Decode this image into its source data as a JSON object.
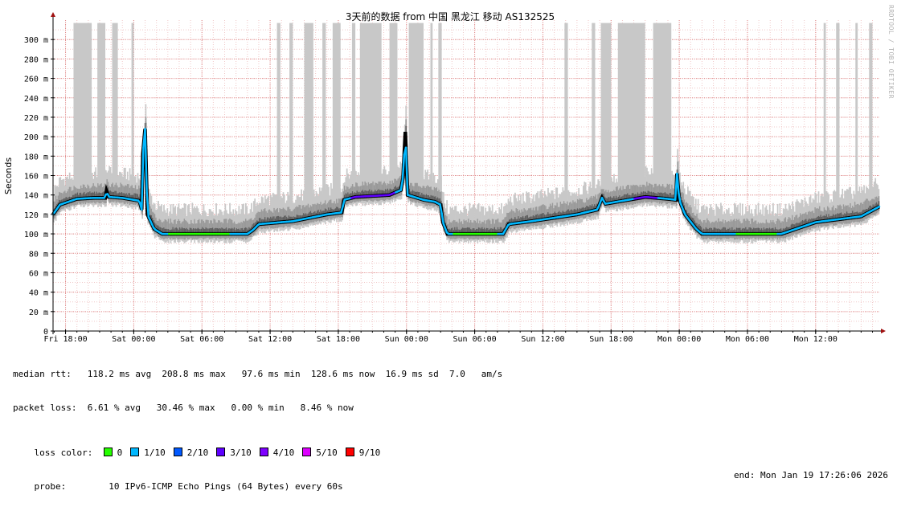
{
  "chart_data": {
    "type": "line",
    "title": "3天前的数据 from 中国 黑龙江 移动 AS132525",
    "ylabel": "Seconds",
    "xlabel": "",
    "ylim": [
      0,
      320
    ],
    "y_ticks": [
      {
        "value": 0,
        "label": "0"
      },
      {
        "value": 20,
        "label": "20 m"
      },
      {
        "value": 40,
        "label": "40 m"
      },
      {
        "value": 60,
        "label": "60 m"
      },
      {
        "value": 80,
        "label": "80 m"
      },
      {
        "value": 100,
        "label": "100 m"
      },
      {
        "value": 120,
        "label": "120 m"
      },
      {
        "value": 140,
        "label": "140 m"
      },
      {
        "value": 160,
        "label": "160 m"
      },
      {
        "value": 180,
        "label": "180 m"
      },
      {
        "value": 200,
        "label": "200 m"
      },
      {
        "value": 220,
        "label": "220 m"
      },
      {
        "value": 240,
        "label": "240 m"
      },
      {
        "value": 260,
        "label": "260 m"
      },
      {
        "value": 280,
        "label": "280 m"
      },
      {
        "value": 300,
        "label": "300 m"
      }
    ],
    "xlim_hours": [
      -1.1,
      71.6
    ],
    "x_ticks": [
      {
        "hour": 0,
        "label": "Fri 18:00"
      },
      {
        "hour": 6,
        "label": "Sat 00:00"
      },
      {
        "hour": 12,
        "label": "Sat 06:00"
      },
      {
        "hour": 18,
        "label": "Sat 12:00"
      },
      {
        "hour": 24,
        "label": "Sat 18:00"
      },
      {
        "hour": 30,
        "label": "Sun 00:00"
      },
      {
        "hour": 36,
        "label": "Sun 06:00"
      },
      {
        "hour": 42,
        "label": "Sun 12:00"
      },
      {
        "hour": 48,
        "label": "Sun 18:00"
      },
      {
        "hour": 54,
        "label": "Mon 00:00"
      },
      {
        "hour": 60,
        "label": "Mon 06:00"
      },
      {
        "hour": 66,
        "label": "Mon 12:00"
      }
    ],
    "grid": true,
    "median_rtt_ms": [
      {
        "hour": -1.1,
        "value": 120
      },
      {
        "hour": -0.5,
        "value": 130
      },
      {
        "hour": 1.0,
        "value": 136
      },
      {
        "hour": 2.5,
        "value": 137
      },
      {
        "hour": 3.5,
        "value": 137
      },
      {
        "hour": 3.6,
        "value": 144
      },
      {
        "hour": 3.8,
        "value": 138
      },
      {
        "hour": 5.0,
        "value": 137
      },
      {
        "hour": 6.0,
        "value": 135
      },
      {
        "hour": 6.5,
        "value": 134
      },
      {
        "hour": 6.7,
        "value": 125
      },
      {
        "hour": 6.8,
        "value": 182
      },
      {
        "hour": 7.0,
        "value": 208
      },
      {
        "hour": 7.2,
        "value": 120
      },
      {
        "hour": 7.8,
        "value": 105
      },
      {
        "hour": 8.5,
        "value": 100
      },
      {
        "hour": 12.0,
        "value": 100
      },
      {
        "hour": 16.0,
        "value": 100
      },
      {
        "hour": 16.5,
        "value": 104
      },
      {
        "hour": 17.0,
        "value": 110
      },
      {
        "hour": 20.0,
        "value": 113
      },
      {
        "hour": 23.0,
        "value": 120
      },
      {
        "hour": 24.3,
        "value": 122
      },
      {
        "hour": 24.5,
        "value": 135
      },
      {
        "hour": 25.5,
        "value": 138
      },
      {
        "hour": 28.5,
        "value": 140
      },
      {
        "hour": 29.5,
        "value": 145
      },
      {
        "hour": 29.7,
        "value": 158
      },
      {
        "hour": 29.9,
        "value": 205
      },
      {
        "hour": 30.1,
        "value": 140
      },
      {
        "hour": 31.5,
        "value": 135
      },
      {
        "hour": 32.5,
        "value": 133
      },
      {
        "hour": 33.0,
        "value": 130
      },
      {
        "hour": 33.2,
        "value": 112
      },
      {
        "hour": 33.6,
        "value": 100
      },
      {
        "hour": 38.5,
        "value": 100
      },
      {
        "hour": 39.0,
        "value": 110
      },
      {
        "hour": 41.0,
        "value": 113
      },
      {
        "hour": 45.0,
        "value": 120
      },
      {
        "hour": 46.8,
        "value": 125
      },
      {
        "hour": 47.2,
        "value": 137
      },
      {
        "hour": 47.5,
        "value": 131
      },
      {
        "hour": 48.5,
        "value": 133
      },
      {
        "hour": 51.0,
        "value": 138
      },
      {
        "hour": 53.0,
        "value": 136
      },
      {
        "hour": 53.7,
        "value": 135
      },
      {
        "hour": 53.8,
        "value": 162
      },
      {
        "hour": 54.0,
        "value": 135
      },
      {
        "hour": 54.5,
        "value": 120
      },
      {
        "hour": 55.5,
        "value": 105
      },
      {
        "hour": 56.0,
        "value": 100
      },
      {
        "hour": 63.0,
        "value": 100
      },
      {
        "hour": 64.5,
        "value": 106
      },
      {
        "hour": 66.0,
        "value": 112
      },
      {
        "hour": 70.0,
        "value": 118
      },
      {
        "hour": 71.6,
        "value": 128
      }
    ],
    "loss_color_segments": [
      {
        "from_hour": 9.0,
        "to_hour": 14.5,
        "loss": "0"
      },
      {
        "from_hour": 25.0,
        "to_hour": 29.0,
        "loss": "3/10"
      },
      {
        "from_hour": 34.0,
        "to_hour": 38.0,
        "loss": "0"
      },
      {
        "from_hour": 50.0,
        "to_hour": 52.0,
        "loss": "3/10"
      },
      {
        "from_hour": 59.0,
        "to_hour": 62.5,
        "loss": "0"
      }
    ],
    "spike_columns_hours": [
      [
        0.7,
        2.3
      ],
      [
        2.8,
        3.5
      ],
      [
        4.1,
        4.6
      ],
      [
        5.8,
        6.0
      ],
      [
        18.6,
        18.9
      ],
      [
        19.7,
        20.0
      ],
      [
        21.0,
        21.8
      ],
      [
        22.6,
        22.9
      ],
      [
        23.5,
        24.2
      ],
      [
        25.2,
        25.5
      ],
      [
        25.9,
        27.8
      ],
      [
        28.5,
        29.2
      ],
      [
        30.2,
        31.5
      ],
      [
        32.1,
        32.3
      ],
      [
        32.8,
        33.1
      ],
      [
        43.9,
        44.2
      ],
      [
        46.3,
        46.6
      ],
      [
        47.1,
        48.0
      ],
      [
        48.6,
        51.0
      ],
      [
        51.7,
        53.3
      ],
      [
        66.7,
        66.9
      ],
      [
        67.8,
        68.1
      ],
      [
        69.5,
        69.7
      ],
      [
        70.7,
        71.0
      ]
    ],
    "legend": {
      "median_rtt": "median rtt:   118.2 ms avg  208.8 ms max   97.6 ms min  128.6 ms now  16.9 ms sd  7.0   am/s",
      "packet_loss": "packet loss:  6.61 % avg   30.46 % max   0.00 % min   8.46 % now",
      "loss_color_label": "loss color:",
      "loss_colors": [
        {
          "label": "0",
          "color": "#26ff00"
        },
        {
          "label": "1/10",
          "color": "#00b8ff"
        },
        {
          "label": "2/10",
          "color": "#0059ff"
        },
        {
          "label": "3/10",
          "color": "#5e00ff"
        },
        {
          "label": "4/10",
          "color": "#7e00ff"
        },
        {
          "label": "5/10",
          "color": "#dd00ff"
        },
        {
          "label": "9/10",
          "color": "#ff0000"
        }
      ],
      "probe": "probe:        10 IPv6-ICMP Echo Pings (64 Bytes) every 60s",
      "end": "end: Mon Jan 19 17:26:06 2026"
    },
    "watermark": "RRDTOOL / TOBI OETIKER"
  }
}
